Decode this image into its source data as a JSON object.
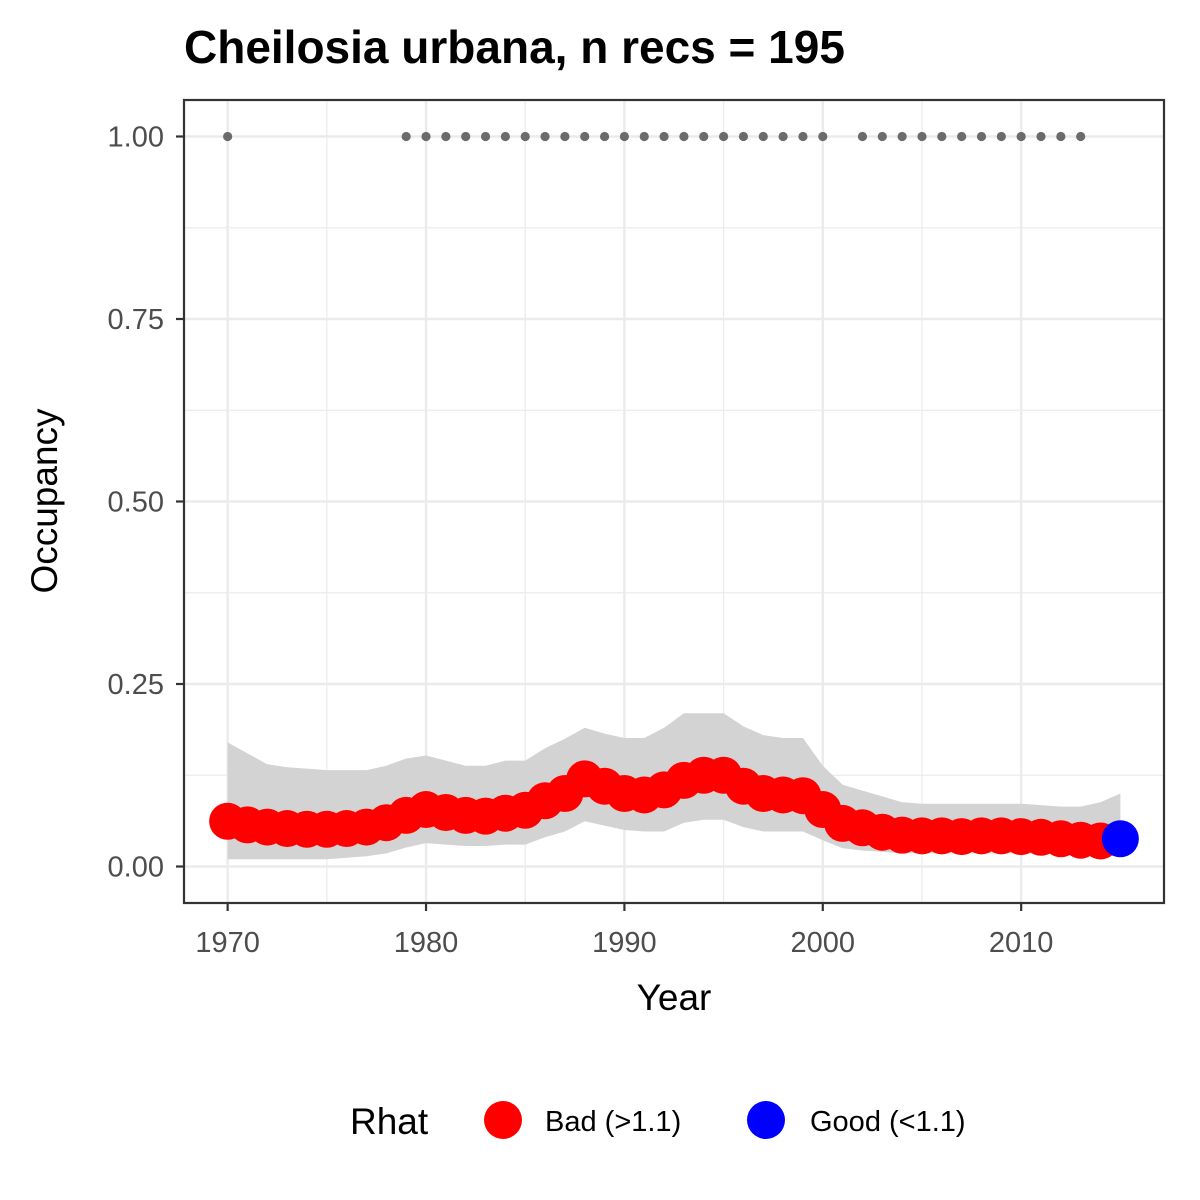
{
  "chart_data": {
    "type": "line",
    "title": "Cheilosia urbana, n recs = 195",
    "xlabel": "Year",
    "ylabel": "Occupancy",
    "xlim": [
      1967.8,
      2017.2
    ],
    "ylim": [
      -0.05,
      1.05
    ],
    "x_ticks": [
      1970,
      1980,
      1990,
      2000,
      2010
    ],
    "x_tick_labels": [
      "1970",
      "1980",
      "1990",
      "2000",
      "2010"
    ],
    "y_ticks": [
      0.0,
      0.25,
      0.5,
      0.75,
      1.0
    ],
    "y_tick_labels": [
      "0.00",
      "0.25",
      "0.50",
      "0.75",
      "1.00"
    ],
    "grid": true,
    "legend": {
      "title": "Rhat",
      "position": "bottom",
      "entries": [
        {
          "label": "Bad (>1.1)",
          "color": "#ff0000"
        },
        {
          "label": "Good (<1.1)",
          "color": "#0000ff"
        }
      ]
    },
    "colors": {
      "bad": "#ff0000",
      "good": "#0000ff",
      "ribbon": "#d3d3d3",
      "records": "#6b6b6b",
      "panel_border": "#333333",
      "grid": "#ebebeb"
    },
    "series": [
      {
        "name": "Occupancy",
        "x": [
          1970,
          1971,
          1972,
          1973,
          1974,
          1975,
          1976,
          1977,
          1978,
          1979,
          1980,
          1981,
          1982,
          1983,
          1984,
          1985,
          1986,
          1987,
          1988,
          1989,
          1990,
          1991,
          1992,
          1993,
          1994,
          1995,
          1996,
          1997,
          1998,
          1999,
          2000,
          2001,
          2002,
          2003,
          2004,
          2005,
          2006,
          2007,
          2008,
          2009,
          2010,
          2011,
          2012,
          2013,
          2014,
          2015
        ],
        "y": [
          0.062,
          0.057,
          0.054,
          0.052,
          0.051,
          0.051,
          0.052,
          0.054,
          0.06,
          0.07,
          0.078,
          0.074,
          0.07,
          0.069,
          0.073,
          0.077,
          0.09,
          0.1,
          0.12,
          0.11,
          0.1,
          0.098,
          0.105,
          0.118,
          0.125,
          0.125,
          0.11,
          0.1,
          0.098,
          0.097,
          0.078,
          0.059,
          0.053,
          0.047,
          0.043,
          0.042,
          0.042,
          0.041,
          0.042,
          0.042,
          0.041,
          0.04,
          0.038,
          0.036,
          0.035,
          0.038
        ],
        "lower": [
          0.01,
          0.01,
          0.01,
          0.01,
          0.01,
          0.01,
          0.012,
          0.014,
          0.018,
          0.026,
          0.032,
          0.03,
          0.028,
          0.028,
          0.03,
          0.03,
          0.04,
          0.048,
          0.062,
          0.056,
          0.05,
          0.048,
          0.048,
          0.06,
          0.064,
          0.064,
          0.054,
          0.048,
          0.048,
          0.048,
          0.036,
          0.025,
          0.022,
          0.02,
          0.018,
          0.018,
          0.018,
          0.018,
          0.018,
          0.018,
          0.018,
          0.018,
          0.016,
          0.015,
          0.015,
          0.014
        ],
        "upper": [
          0.17,
          0.155,
          0.14,
          0.136,
          0.134,
          0.132,
          0.132,
          0.132,
          0.138,
          0.148,
          0.152,
          0.145,
          0.138,
          0.138,
          0.145,
          0.145,
          0.162,
          0.175,
          0.19,
          0.182,
          0.176,
          0.176,
          0.19,
          0.21,
          0.21,
          0.21,
          0.192,
          0.18,
          0.176,
          0.176,
          0.138,
          0.112,
          0.104,
          0.096,
          0.088,
          0.086,
          0.086,
          0.086,
          0.086,
          0.086,
          0.086,
          0.084,
          0.082,
          0.082,
          0.088,
          0.1
        ],
        "rhat_status": [
          "bad",
          "bad",
          "bad",
          "bad",
          "bad",
          "bad",
          "bad",
          "bad",
          "bad",
          "bad",
          "bad",
          "bad",
          "bad",
          "bad",
          "bad",
          "bad",
          "bad",
          "bad",
          "bad",
          "bad",
          "bad",
          "bad",
          "bad",
          "bad",
          "bad",
          "bad",
          "bad",
          "bad",
          "bad",
          "bad",
          "bad",
          "bad",
          "bad",
          "bad",
          "bad",
          "bad",
          "bad",
          "bad",
          "bad",
          "bad",
          "bad",
          "bad",
          "bad",
          "bad",
          "bad",
          "good"
        ]
      }
    ],
    "record_years": [
      1970,
      1979,
      1980,
      1981,
      1982,
      1983,
      1984,
      1985,
      1986,
      1987,
      1988,
      1989,
      1990,
      1991,
      1992,
      1993,
      1994,
      1995,
      1996,
      1997,
      1998,
      1999,
      2000,
      2002,
      2003,
      2004,
      2005,
      2006,
      2007,
      2008,
      2009,
      2010,
      2011,
      2012,
      2013
    ],
    "record_value": 1.0
  }
}
